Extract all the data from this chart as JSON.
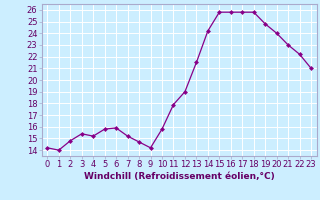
{
  "hours": [
    0,
    1,
    2,
    3,
    4,
    5,
    6,
    7,
    8,
    9,
    10,
    11,
    12,
    13,
    14,
    15,
    16,
    17,
    18,
    19,
    20,
    21,
    22,
    23
  ],
  "values": [
    14.2,
    14.0,
    14.8,
    15.4,
    15.2,
    15.8,
    15.9,
    15.2,
    14.7,
    14.2,
    15.8,
    17.9,
    19.0,
    21.5,
    24.2,
    25.8,
    25.8,
    25.8,
    25.8,
    24.8,
    24.0,
    23.0,
    22.2,
    21.0
  ],
  "line_color": "#880088",
  "marker": "D",
  "marker_size": 2.5,
  "marker_color": "#880088",
  "bg_color": "#cceeff",
  "grid_color": "#ffffff",
  "xlabel": "Windchill (Refroidissement éolien,°C)",
  "ylabel": "",
  "ylim": [
    13.5,
    26.5
  ],
  "xlim": [
    -0.5,
    23.5
  ],
  "yticks": [
    14,
    15,
    16,
    17,
    18,
    19,
    20,
    21,
    22,
    23,
    24,
    25,
    26
  ],
  "xtick_labels": [
    "0",
    "1",
    "2",
    "3",
    "4",
    "5",
    "6",
    "7",
    "8",
    "9",
    "10",
    "11",
    "12",
    "13",
    "14",
    "15",
    "16",
    "17",
    "18",
    "19",
    "20",
    "21",
    "22",
    "23"
  ],
  "label_fontsize": 6.5,
  "tick_fontsize": 6.0,
  "spine_color": "#aaaacc"
}
